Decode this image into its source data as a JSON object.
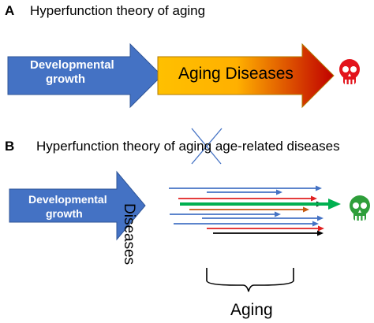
{
  "panel_a": {
    "letter": "A",
    "title": "Hyperfunction theory of aging",
    "growth_label_line1": "Developmental",
    "growth_label_line2": "growth",
    "aging_label": "Aging Diseases",
    "skull_color": "#e3141c"
  },
  "panel_b": {
    "letter": "B",
    "title_prefix": "Hyperfunction theory of ",
    "title_crossed": "aging",
    "title_suffix": " age-related diseases",
    "growth_label_line1": "Developmental",
    "growth_label_line2": "growth",
    "vertical_label": "Diseases",
    "bracket_label": "Aging",
    "skull_color": "#2e9e3a"
  },
  "colors": {
    "blue_arrow": "#4472c4",
    "blue_arrow_edge": "#2f5597",
    "gradient_start": "#ffc000",
    "gradient_end": "#c00000",
    "cross": "#4472c4"
  },
  "disease_lines": [
    {
      "color": "#4472c4"
    },
    {
      "color": "#4472c4"
    },
    {
      "color": "#e02020"
    },
    {
      "color": "#000000"
    },
    {
      "color": "#c55a11"
    },
    {
      "color": "#4472c4"
    },
    {
      "color": "#00b050"
    },
    {
      "color": "#4472c4"
    },
    {
      "color": "#4472c4"
    },
    {
      "color": "#e02020"
    },
    {
      "color": "#000000"
    }
  ]
}
